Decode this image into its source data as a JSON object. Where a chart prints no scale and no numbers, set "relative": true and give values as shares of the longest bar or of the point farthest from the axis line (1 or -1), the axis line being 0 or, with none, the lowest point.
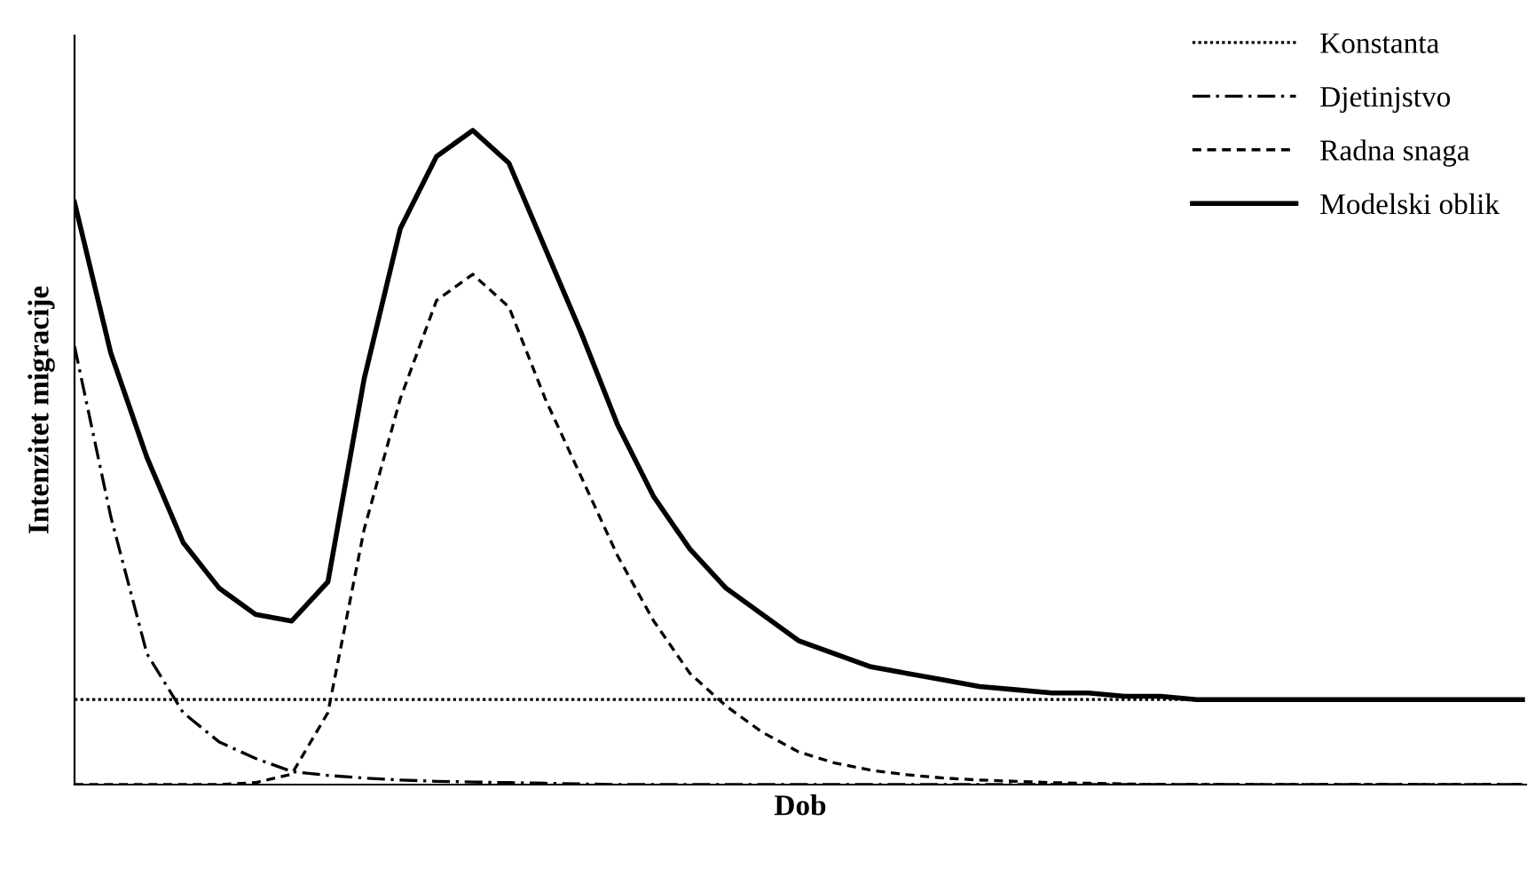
{
  "chart_data": {
    "type": "line",
    "relative": true,
    "xlabel": "Dob",
    "ylabel": "Intenzitet migracije",
    "legend": "top right",
    "tick_labels": false,
    "categories": [
      null,
      null,
      null,
      null,
      null,
      null,
      null,
      null,
      null,
      null,
      null,
      null,
      null,
      null,
      null,
      null,
      null,
      null,
      null,
      null,
      null,
      null,
      null,
      null,
      null,
      null,
      null,
      null,
      null,
      null,
      null,
      null,
      null,
      null,
      null,
      null,
      null,
      null,
      null,
      null,
      null
    ],
    "series": [
      {
        "name": "Konstanta",
        "color": "#000000",
        "line_style": "dotted",
        "values": [
          0.13,
          0.13,
          0.13,
          0.13,
          0.13,
          0.13,
          0.13,
          0.13,
          0.13,
          0.13,
          0.13,
          0.13,
          0.13,
          0.13,
          0.13,
          0.13,
          0.13,
          0.13,
          0.13,
          0.13,
          0.13,
          0.13,
          0.13,
          0.13,
          0.13,
          0.13,
          0.13,
          0.13,
          0.13,
          0.13,
          0.13,
          0.13,
          0.13,
          0.13,
          0.13,
          0.13,
          0.13,
          0.13,
          0.13,
          0.13,
          0.13
        ]
      },
      {
        "name": "Djetinjstvo",
        "color": "#000000",
        "line_style": "dashdot",
        "values": [
          0.67,
          0.41,
          0.2,
          0.11,
          0.065,
          0.04,
          0.02,
          0.014,
          0.01,
          0.007,
          0.005,
          0.004,
          0.003,
          0.002,
          0.001,
          0,
          0,
          0,
          0,
          0,
          0,
          0,
          0,
          0,
          0,
          0,
          0,
          0,
          0,
          0,
          0,
          0,
          0,
          0,
          0,
          0,
          0,
          0,
          0,
          0,
          0
        ]
      },
      {
        "name": "Radna snaga",
        "color": "#000000",
        "line_style": "dashed",
        "values": [
          0,
          0,
          0,
          0,
          0,
          0.003,
          0.016,
          0.11,
          0.39,
          0.59,
          0.74,
          0.78,
          0.73,
          0.59,
          0.47,
          0.35,
          0.25,
          0.17,
          0.12,
          0.08,
          0.05,
          0.033,
          0.022,
          0.015,
          0.01,
          0.007,
          0.005,
          0.003,
          0.002,
          0.001,
          0,
          0,
          0,
          0,
          0,
          0,
          0,
          0,
          0,
          0,
          0
        ]
      },
      {
        "name": "Modelski oblik",
        "color": "#000000",
        "line_style": "solid",
        "values": [
          0.89,
          0.66,
          0.5,
          0.37,
          0.3,
          0.26,
          0.25,
          0.31,
          0.62,
          0.85,
          0.96,
          1.0,
          0.95,
          0.82,
          0.69,
          0.55,
          0.44,
          0.36,
          0.3,
          0.26,
          0.22,
          0.2,
          0.18,
          0.17,
          0.16,
          0.15,
          0.145,
          0.14,
          0.14,
          0.135,
          0.135,
          0.13,
          0.13,
          0.13,
          0.13,
          0.13,
          0.13,
          0.13,
          0.13,
          0.13,
          0.13
        ]
      }
    ]
  }
}
